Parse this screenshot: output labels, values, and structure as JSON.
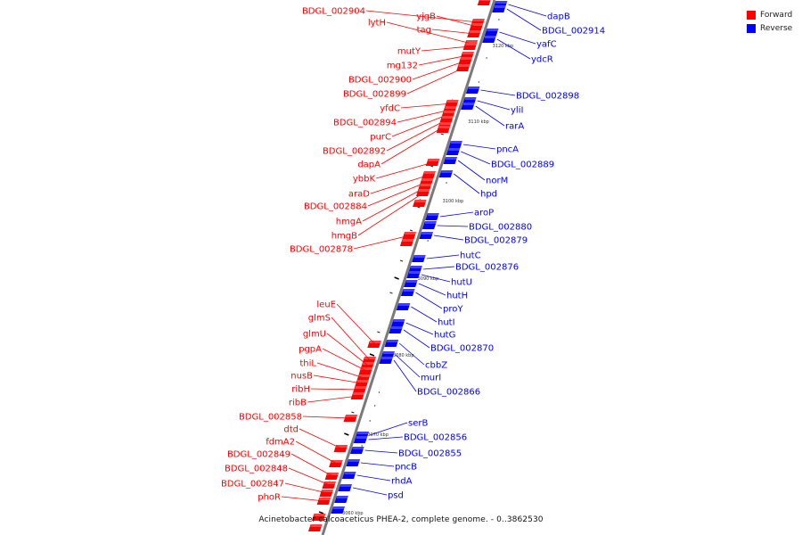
{
  "legend": [
    {
      "label": "Forward",
      "color": "#ff0000"
    },
    {
      "label": "Reverse",
      "color": "#0000ff"
    }
  ],
  "caption": "Acinetobacter calcoaceticus PHEA-2, complete genome. - 0..3862530",
  "tick_labels": [
    "3120 kbp",
    "3110 kbp",
    "3100 kbp",
    "3090 kbp",
    "3080 kbp",
    "3070 kbp",
    "3060 kbp"
  ],
  "forward_genes": [
    "BDGL_002904",
    "lytH",
    "yjgB",
    "tag",
    "mutY",
    "mg132",
    "BDGL_002900",
    "BDGL_002899",
    "yfdC",
    "BDGL_002894",
    "purC",
    "BDGL_002892",
    "dapA",
    "ybbK",
    "araD",
    "BDGL_002884",
    "hmgA",
    "hmgB",
    "BDGL_002878",
    "leuE",
    "glmS",
    "glmU",
    "pgpA",
    "thiL",
    "nusB",
    "ribH",
    "ribB",
    "BDGL_002858",
    "dtd",
    "fdmA2",
    "BDGL_002849",
    "BDGL_002848",
    "BDGL_002847",
    "phoR"
  ],
  "reverse_genes": [
    "dapB",
    "BDGL_002914",
    "yafC",
    "ydcR",
    "BDGL_002898",
    "yliI",
    "rarA",
    "pncA",
    "BDGL_002889",
    "norM",
    "hpd",
    "aroP",
    "BDGL_002880",
    "BDGL_002879",
    "hutC",
    "BDGL_002876",
    "hutU",
    "hutH",
    "proY",
    "hutI",
    "hutG",
    "BDGL_002870",
    "cbbZ",
    "murI",
    "BDGL_002866",
    "serB",
    "BDGL_002856",
    "BDGL_002855",
    "pncB",
    "rhdA",
    "psd"
  ]
}
